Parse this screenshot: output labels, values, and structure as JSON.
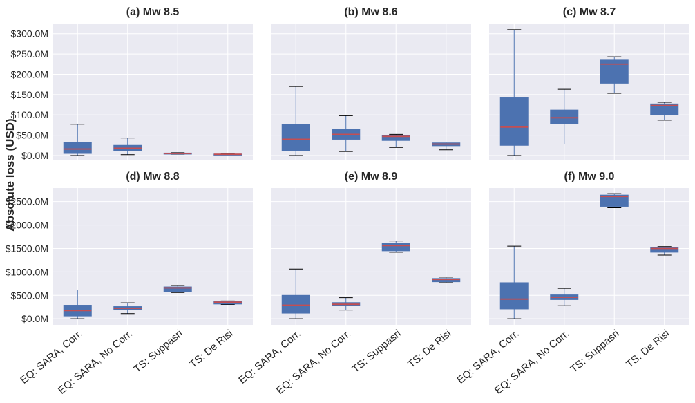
{
  "figure": {
    "ylabel": "Absolute loss (USD)"
  },
  "colors": {
    "panel_bg": "#eaeaf2",
    "grid": "#ffffff",
    "box_fill": "#4c72b0",
    "median": "#c44e52",
    "whisker": "#4c72b0",
    "cap": "#000000",
    "text": "#262626"
  },
  "chart_data": [
    {
      "type": "box",
      "title": "(a) Mw 8.5",
      "categories": [
        "EQ: SARA, Corr.",
        "EQ: SARA, No Corr.",
        "TS: Suppasri",
        "TS: De Risi"
      ],
      "ylim": [
        -12,
        325
      ],
      "yticks": [
        0,
        50,
        100,
        150,
        200,
        250,
        300
      ],
      "yticklabels": [
        "$0.0M",
        "$50.0M",
        "$100.0M",
        "$150.0M",
        "$200.0M",
        "$250.0M",
        "$300.0M"
      ],
      "boxes": [
        {
          "whislo": 0,
          "q1": 5,
          "med": 16,
          "q3": 33,
          "whishi": 77
        },
        {
          "whislo": 2,
          "q1": 12,
          "med": 18,
          "q3": 25,
          "whishi": 43
        },
        {
          "whislo": 3,
          "q1": 4,
          "med": 5,
          "q3": 6,
          "whishi": 7
        },
        {
          "whislo": 2,
          "q1": 2.5,
          "med": 3,
          "q3": 3.5,
          "whishi": 4
        }
      ]
    },
    {
      "type": "box",
      "title": "(b) Mw 8.6",
      "categories": [
        "EQ: SARA, Corr.",
        "EQ: SARA, No Corr.",
        "TS: Suppasri",
        "TS: De Risi"
      ],
      "ylim": [
        -12,
        325
      ],
      "yticks": [
        0,
        50,
        100,
        150,
        200,
        250,
        300
      ],
      "yticklabels": [
        "$0.0M",
        "$50.0M",
        "$100.0M",
        "$150.0M",
        "$200.0M",
        "$250.0M",
        "$300.0M"
      ],
      "boxes": [
        {
          "whislo": 0,
          "q1": 12,
          "med": 40,
          "q3": 77,
          "whishi": 170
        },
        {
          "whislo": 10,
          "q1": 40,
          "med": 52,
          "q3": 64,
          "whishi": 98
        },
        {
          "whislo": 20,
          "q1": 37,
          "med": 47,
          "q3": 50,
          "whishi": 52
        },
        {
          "whislo": 14,
          "q1": 24,
          "med": 28,
          "q3": 31,
          "whishi": 33
        }
      ]
    },
    {
      "type": "box",
      "title": "(c) Mw 8.7",
      "categories": [
        "EQ: SARA, Corr.",
        "EQ: SARA, No Corr.",
        "TS: Suppasri",
        "TS: De Risi"
      ],
      "ylim": [
        -12,
        325
      ],
      "yticks": [
        0,
        50,
        100,
        150,
        200,
        250,
        300
      ],
      "yticklabels": [
        "$0.0M",
        "$50.0M",
        "$100.0M",
        "$150.0M",
        "$200.0M",
        "$250.0M",
        "$300.0M"
      ],
      "boxes": [
        {
          "whislo": 0,
          "q1": 25,
          "med": 70,
          "q3": 142,
          "whishi": 310
        },
        {
          "whislo": 28,
          "q1": 78,
          "med": 93,
          "q3": 112,
          "whishi": 163
        },
        {
          "whislo": 153,
          "q1": 178,
          "med": 225,
          "q3": 235,
          "whishi": 243
        },
        {
          "whislo": 87,
          "q1": 101,
          "med": 123,
          "q3": 127,
          "whishi": 131
        }
      ]
    },
    {
      "type": "box",
      "title": "(d) Mw 8.8",
      "categories": [
        "EQ: SARA, Corr.",
        "EQ: SARA, No Corr.",
        "TS: Suppasri",
        "TS: De Risi"
      ],
      "ylim": [
        -130,
        2790
      ],
      "yticks": [
        0,
        500,
        1000,
        1500,
        2000,
        2500
      ],
      "yticklabels": [
        "$0.0M",
        "$500.0M",
        "$1000.0M",
        "$1500.0M",
        "$2000.0M",
        "$2500.0M"
      ],
      "boxes": [
        {
          "whislo": 0,
          "q1": 60,
          "med": 175,
          "q3": 290,
          "whishi": 615
        },
        {
          "whislo": 110,
          "q1": 200,
          "med": 225,
          "q3": 260,
          "whishi": 340
        },
        {
          "whislo": 560,
          "q1": 580,
          "med": 660,
          "q3": 680,
          "whishi": 710
        },
        {
          "whislo": 305,
          "q1": 315,
          "med": 355,
          "q3": 365,
          "whishi": 380
        }
      ]
    },
    {
      "type": "box",
      "title": "(e) Mw 8.9",
      "categories": [
        "EQ: SARA, Corr.",
        "EQ: SARA, No Corr.",
        "TS: Suppasri",
        "TS: De Risi"
      ],
      "ylim": [
        -130,
        2790
      ],
      "yticks": [
        0,
        500,
        1000,
        1500,
        2000,
        2500
      ],
      "yticklabels": [
        "$0.0M",
        "$500.0M",
        "$1000.0M",
        "$1500.0M",
        "$2000.0M",
        "$2500.0M"
      ],
      "boxes": [
        {
          "whislo": 0,
          "q1": 120,
          "med": 290,
          "q3": 500,
          "whishi": 1060
        },
        {
          "whislo": 185,
          "q1": 280,
          "med": 310,
          "q3": 345,
          "whishi": 450
        },
        {
          "whislo": 1420,
          "q1": 1450,
          "med": 1560,
          "q3": 1610,
          "whishi": 1660
        },
        {
          "whislo": 770,
          "q1": 790,
          "med": 840,
          "q3": 860,
          "whishi": 890
        }
      ]
    },
    {
      "type": "box",
      "title": "(f) Mw 9.0",
      "categories": [
        "EQ: SARA, Corr.",
        "EQ: SARA, No Corr.",
        "TS: Suppasri",
        "TS: De Risi"
      ],
      "ylim": [
        -130,
        2790
      ],
      "yticks": [
        0,
        500,
        1000,
        1500,
        2000,
        2500
      ],
      "yticklabels": [
        "$0.0M",
        "$500.0M",
        "$1000.0M",
        "$1500.0M",
        "$2000.0M",
        "$2500.0M"
      ],
      "boxes": [
        {
          "whislo": 0,
          "q1": 210,
          "med": 420,
          "q3": 770,
          "whishi": 1550
        },
        {
          "whislo": 280,
          "q1": 410,
          "med": 460,
          "q3": 510,
          "whishi": 650
        },
        {
          "whislo": 2370,
          "q1": 2400,
          "med": 2610,
          "q3": 2640,
          "whishi": 2670
        },
        {
          "whislo": 1360,
          "q1": 1420,
          "med": 1500,
          "q3": 1520,
          "whishi": 1540
        }
      ]
    }
  ]
}
